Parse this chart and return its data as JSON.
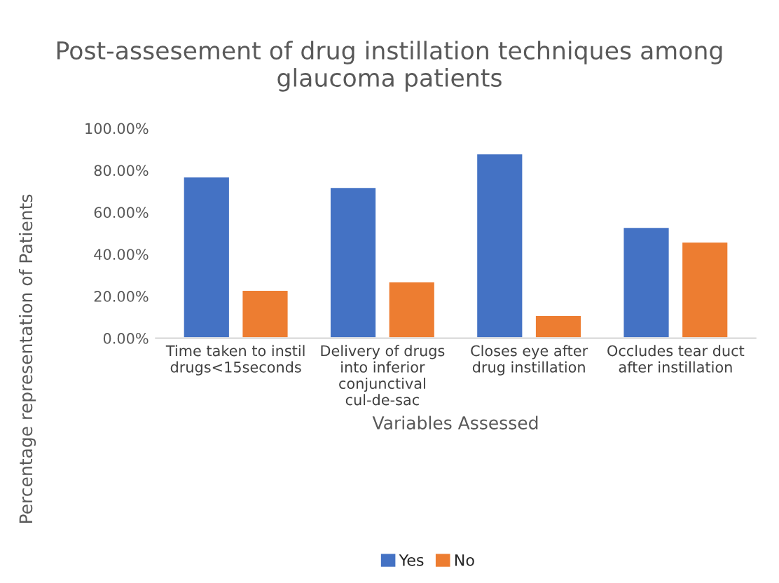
{
  "chart_data": {
    "type": "bar",
    "title": "Post-assesement of drug instillation techniques among glaucoma patients",
    "xlabel": "Variables Assessed",
    "ylabel": "Percentage representation of Patients",
    "categories": [
      "Time taken to instil drugs<15seconds",
      "Delivery of drugs into inferior conjunctival cul-de-sac",
      "Closes eye after drug instillation",
      "Occludes tear duct after instillation"
    ],
    "series": [
      {
        "name": "Yes",
        "color": "#4472c4",
        "values": [
          77,
          72,
          88,
          53
        ]
      },
      {
        "name": "No",
        "color": "#ed7d31",
        "values": [
          23,
          27,
          11,
          46
        ]
      }
    ],
    "ylim": [
      0,
      100
    ],
    "yticks": [
      {
        "value": 0,
        "label": "0.00%"
      },
      {
        "value": 20,
        "label": "20.00%"
      },
      {
        "value": 40,
        "label": "40.00%"
      },
      {
        "value": 60,
        "label": "60.00%"
      },
      {
        "value": 80,
        "label": "80.00%"
      },
      {
        "value": 100,
        "label": "100.00%"
      }
    ],
    "grid": false,
    "legend": "bottom"
  }
}
